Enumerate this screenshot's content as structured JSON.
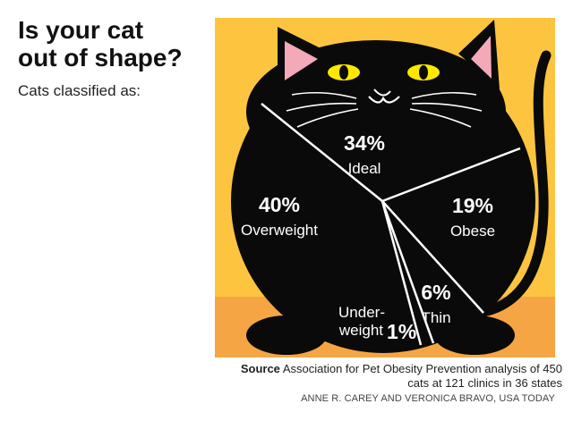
{
  "header": {
    "title_line1": "Is your cat",
    "title_line2": "out of shape?",
    "subtitle": "Cats classified as:"
  },
  "chart_data": {
    "type": "pie",
    "title": "Is your cat out of shape?",
    "subtitle": "Cats classified as:",
    "slices": [
      {
        "label": "Ideal",
        "value": 34,
        "value_label": "34%"
      },
      {
        "label": "Obese",
        "value": 19,
        "value_label": "19%"
      },
      {
        "label": "Thin",
        "value": 6,
        "value_label": "6%"
      },
      {
        "label_line1": "Under-",
        "label_line2": "weight",
        "label": "Underweight",
        "value": 1,
        "value_label": "1%"
      },
      {
        "label": "Overweight",
        "value": 40,
        "value_label": "40%"
      }
    ]
  },
  "footer": {
    "source_label": "Source",
    "source_text": "Association for Pet Obesity Prevention analysis of 450 cats at 121 clinics in 36 states",
    "credit": "ANNE R. CAREY AND VERONICA BRAVO, USA TODAY"
  },
  "colors": {
    "background_yellow": "#FDC53F",
    "floor_orange": "#F6A544",
    "cat_black": "#0A0A0A",
    "ear_pink": "#F4A9B8",
    "eye_yellow": "#FFE800",
    "divider_white": "#FFFFFF"
  }
}
